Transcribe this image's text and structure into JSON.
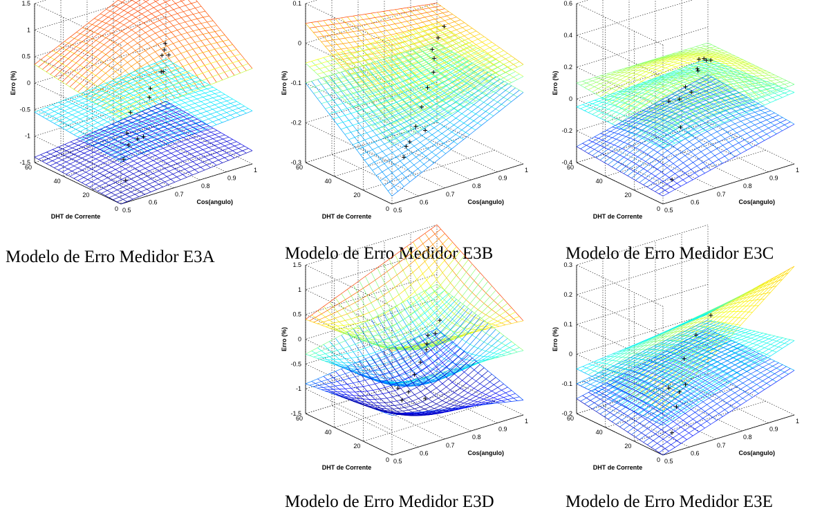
{
  "chart_data": [
    {
      "type": "surface3d",
      "caption": "Modelo de Erro Medidor E3A",
      "xlabel": "Cos(angulo)",
      "ylabel": "DHT de Corrente",
      "zlabel": "Erro (%)",
      "xlim": [
        0.5,
        1
      ],
      "ylim": [
        0,
        60
      ],
      "zlim": [
        -1.5,
        1.5
      ],
      "xticks": [
        "0.5",
        "0.6",
        "0.7",
        "0.8",
        "0.9",
        "1"
      ],
      "yticks": [
        "0",
        "20",
        "40",
        "60"
      ],
      "zticks": [
        "-1.5",
        "-1",
        "-0.5",
        "0",
        "0.5",
        "1",
        "1.5"
      ],
      "grid": true,
      "colormap": "jet",
      "surfaces": [
        {
          "name": "",
          "corners": {
            "x05_y0": 0.1,
            "x1_y0": 0.3,
            "x05_y60": 0.35,
            "x1_y60": 1.5
          },
          "curvature": 0.15
        },
        {
          "name": "",
          "corners": {
            "x05_y0": -0.7,
            "x1_y0": -0.5,
            "x05_y60": -0.55,
            "x1_y60": -0.3
          },
          "curvature": 0.05
        },
        {
          "name": "",
          "corners": {
            "x05_y0": -1.5,
            "x1_y0": -1.25,
            "x05_y60": -1.4,
            "x1_y60": -1.1
          },
          "curvature": 0.05
        }
      ],
      "points": [
        [
          0.55,
          5,
          -0.3
        ],
        [
          0.58,
          8,
          0.0
        ],
        [
          0.6,
          15,
          -1.4
        ],
        [
          0.62,
          20,
          -1.1
        ],
        [
          0.65,
          22,
          -0.9
        ],
        [
          0.7,
          25,
          -0.9
        ],
        [
          0.8,
          35,
          -0.4
        ],
        [
          0.82,
          38,
          -0.3
        ],
        [
          0.88,
          40,
          -0.1
        ],
        [
          0.9,
          45,
          -0.2
        ],
        [
          0.93,
          50,
          0.0
        ],
        [
          0.95,
          52,
          0.05
        ],
        [
          0.97,
          55,
          0.1
        ],
        [
          1.0,
          58,
          -0.2
        ],
        [
          0.75,
          30,
          -1.0
        ]
      ]
    },
    {
      "type": "surface3d",
      "caption": "Modelo de Erro Medidor E3B",
      "xlabel": "Cos(angulo)",
      "ylabel": "DHT de Corrente",
      "zlabel": "Erro (%)",
      "xlim": [
        0.5,
        1
      ],
      "ylim": [
        0,
        60
      ],
      "zlim": [
        -0.3,
        0.1
      ],
      "xticks": [
        "0.5",
        "0.6",
        "0.7",
        "0.8",
        "0.9",
        "1"
      ],
      "yticks": [
        "0",
        "20",
        "40",
        "60"
      ],
      "zticks": [
        "-0.3",
        "-0.2",
        "-0.1",
        "0",
        "0.1"
      ],
      "grid": true,
      "colormap": "jet",
      "surfaces": [
        {
          "name": "",
          "corners": {
            "x05_y0": -0.1,
            "x1_y0": -0.05,
            "x05_y60": 0.05,
            "x1_y60": 0.0
          },
          "curvature": -0.05
        },
        {
          "name": "",
          "corners": {
            "x05_y0": -0.15,
            "x1_y0": -0.08,
            "x05_y60": -0.05,
            "x1_y60": -0.05
          },
          "curvature": -0.05
        },
        {
          "name": "",
          "corners": {
            "x05_y0": -0.28,
            "x1_y0": -0.12,
            "x05_y60": -0.1,
            "x1_y60": -0.1
          },
          "curvature": -0.08
        }
      ],
      "points": [
        [
          0.6,
          10,
          -0.22
        ],
        [
          0.62,
          12,
          -0.2
        ],
        [
          0.65,
          15,
          -0.2
        ],
        [
          0.7,
          20,
          -0.18
        ],
        [
          0.75,
          25,
          -0.15
        ],
        [
          0.8,
          30,
          -0.12
        ],
        [
          0.85,
          35,
          -0.1
        ],
        [
          0.88,
          40,
          -0.08
        ],
        [
          0.9,
          45,
          -0.07
        ],
        [
          0.95,
          50,
          -0.06
        ],
        [
          1.0,
          55,
          -0.05
        ],
        [
          0.78,
          28,
          -0.22
        ]
      ]
    },
    {
      "type": "surface3d",
      "caption": "Modelo de Erro Medidor E3C",
      "xlabel": "Cos(angulo)",
      "ylabel": "DHT de Corrente",
      "zlabel": "Erro (%)",
      "xlim": [
        0.5,
        1
      ],
      "ylim": [
        0,
        60
      ],
      "zlim": [
        -0.4,
        0.6
      ],
      "xticks": [
        "0.5",
        "0.6",
        "0.7",
        "0.8",
        "0.9",
        "1"
      ],
      "yticks": [
        "0",
        "20",
        "40",
        "60"
      ],
      "zticks": [
        "-0.4",
        "-0.2",
        "0",
        "0.2",
        "0.4",
        "0.6"
      ],
      "grid": true,
      "colormap": "jet",
      "surfaces": [
        {
          "name": "",
          "corners": {
            "x05_y0": 0.05,
            "x1_y0": 0.1,
            "x05_y60": 0.1,
            "x1_y60": 0.1
          },
          "curvature": 0.2
        },
        {
          "name": "",
          "corners": {
            "x05_y0": -0.05,
            "x1_y0": 0.05,
            "x05_y60": -0.05,
            "x1_y60": 0.0
          },
          "curvature": 0.15
        },
        {
          "name": "",
          "corners": {
            "x05_y0": -0.35,
            "x1_y0": -0.15,
            "x05_y60": -0.3,
            "x1_y60": -0.1
          },
          "curvature": 0.12
        }
      ],
      "points": [
        [
          0.55,
          5,
          0.2
        ],
        [
          0.7,
          25,
          0.05
        ],
        [
          0.75,
          30,
          0.08
        ],
        [
          0.8,
          35,
          0.0
        ],
        [
          0.85,
          40,
          0.1
        ],
        [
          0.88,
          45,
          0.05
        ],
        [
          0.9,
          48,
          0.1
        ],
        [
          0.93,
          50,
          0.08
        ],
        [
          0.95,
          52,
          0.05
        ],
        [
          1.0,
          58,
          0.0
        ],
        [
          0.6,
          12,
          -0.35
        ],
        [
          0.72,
          28,
          -0.15
        ]
      ]
    },
    {
      "type": "surface3d",
      "caption": "Modelo de Erro Medidor E3D",
      "xlabel": "Cos(angulo)",
      "ylabel": "DHT de Corrente",
      "zlabel": "Erro (%)",
      "xlim": [
        0.5,
        1
      ],
      "ylim": [
        0,
        60
      ],
      "zlim": [
        -1.5,
        1.5
      ],
      "xticks": [
        "0.5",
        "0.6",
        "0.7",
        "0.8",
        "0.9",
        "1"
      ],
      "yticks": [
        "0",
        "20",
        "40",
        "60"
      ],
      "zticks": [
        "-1.5",
        "-1",
        "-0.5",
        "0",
        "0.5",
        "1",
        "1.5"
      ],
      "grid": true,
      "colormap": "jet",
      "surfaces": [
        {
          "name": "",
          "corners": {
            "x05_y0": 0.6,
            "x1_y0": 0.4,
            "x05_y60": 0.4,
            "x1_y60": 1.5
          },
          "curvature": -0.4
        },
        {
          "name": "",
          "corners": {
            "x05_y0": -0.1,
            "x1_y0": -0.2,
            "x05_y60": -0.3,
            "x1_y60": 0.3
          },
          "curvature": -0.4
        },
        {
          "name": "",
          "corners": {
            "x05_y0": -0.7,
            "x1_y0": -1.2,
            "x05_y60": -0.9,
            "x1_y60": -0.6
          },
          "curvature": -0.3
        }
      ],
      "points": [
        [
          0.55,
          5,
          -0.3
        ],
        [
          0.62,
          15,
          -0.8
        ],
        [
          0.7,
          25,
          -0.9
        ],
        [
          0.75,
          30,
          -0.7
        ],
        [
          0.8,
          35,
          -0.6
        ],
        [
          0.85,
          40,
          -0.5
        ],
        [
          0.88,
          45,
          -0.5
        ],
        [
          0.9,
          48,
          -0.4
        ],
        [
          0.95,
          52,
          -0.5
        ],
        [
          1.0,
          58,
          -0.4
        ],
        [
          0.78,
          28,
          -1.2
        ]
      ]
    },
    {
      "type": "surface3d",
      "caption": "Modelo de Erro Medidor E3E",
      "xlabel": "Cos(angulo)",
      "ylabel": "DHT de Corrente",
      "zlabel": "Erro (%)",
      "xlim": [
        0.5,
        1
      ],
      "ylim": [
        0,
        60
      ],
      "zlim": [
        -0.2,
        0.3
      ],
      "xticks": [
        "0.5",
        "0.6",
        "0.7",
        "0.8",
        "0.9",
        "1"
      ],
      "yticks": [
        "0",
        "20",
        "40",
        "60"
      ],
      "zticks": [
        "-0.2",
        "-0.1",
        "0",
        "0.1",
        "0.2",
        "0.3"
      ],
      "grid": true,
      "colormap": "jet",
      "surfaces": [
        {
          "name": "",
          "corners": {
            "x05_y0": -0.05,
            "x1_y0": 0.3,
            "x05_y60": -0.05,
            "x1_y60": 0.0
          },
          "curvature": 0.1
        },
        {
          "name": "",
          "corners": {
            "x05_y0": -0.1,
            "x1_y0": 0.05,
            "x05_y60": -0.1,
            "x1_y60": -0.02
          },
          "curvature": 0.08
        },
        {
          "name": "",
          "corners": {
            "x05_y0": -0.2,
            "x1_y0": -0.05,
            "x05_y60": -0.15,
            "x1_y60": -0.05
          },
          "curvature": 0.06
        }
      ],
      "points": [
        [
          0.55,
          5,
          0.0
        ],
        [
          0.65,
          18,
          -0.12
        ],
        [
          0.7,
          25,
          -0.1
        ],
        [
          0.75,
          30,
          -0.1
        ],
        [
          0.8,
          40,
          -0.05
        ],
        [
          0.9,
          50,
          -0.02
        ],
        [
          1.0,
          58,
          0.0
        ],
        [
          0.6,
          12,
          -0.18
        ]
      ]
    }
  ]
}
